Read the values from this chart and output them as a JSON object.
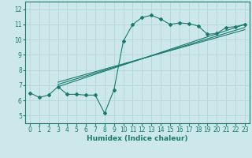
{
  "xlabel": "Humidex (Indice chaleur)",
  "ylabel": "",
  "bg_color": "#cce8eb",
  "grid_color": "#b8d8db",
  "line_color": "#1a7a6e",
  "xlim": [
    -0.5,
    23.5
  ],
  "ylim": [
    4.5,
    12.5
  ],
  "xticks": [
    0,
    1,
    2,
    3,
    4,
    5,
    6,
    7,
    8,
    9,
    10,
    11,
    12,
    13,
    14,
    15,
    16,
    17,
    18,
    19,
    20,
    21,
    22,
    23
  ],
  "yticks": [
    5,
    6,
    7,
    8,
    9,
    10,
    11,
    12
  ],
  "line1_x": [
    0,
    1,
    2,
    3,
    4,
    5,
    6,
    7,
    8,
    9,
    10,
    11,
    12,
    13,
    14,
    15,
    16,
    17,
    18,
    19,
    20,
    21,
    22,
    23
  ],
  "line1_y": [
    6.5,
    6.2,
    6.35,
    6.9,
    6.4,
    6.4,
    6.35,
    6.35,
    5.15,
    6.7,
    9.9,
    11.0,
    11.45,
    11.6,
    11.35,
    11.0,
    11.1,
    11.05,
    10.9,
    10.35,
    10.4,
    10.8,
    10.85,
    11.0
  ],
  "line2_x": [
    3,
    23
  ],
  "line2_y": [
    6.9,
    11.0
  ],
  "line3_x": [
    3,
    23
  ],
  "line3_y": [
    7.05,
    10.8
  ],
  "line4_x": [
    3,
    23
  ],
  "line4_y": [
    7.2,
    10.65
  ]
}
